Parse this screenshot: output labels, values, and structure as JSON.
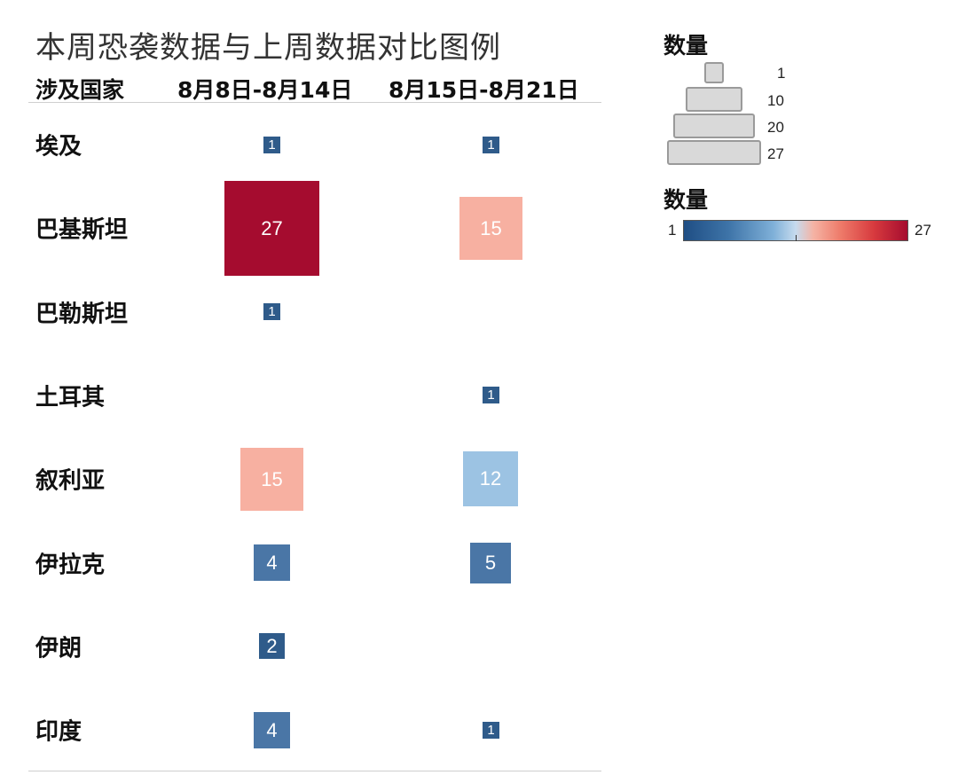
{
  "title": "本周恐袭数据与上周数据对比图例",
  "headers": {
    "country": "涉及国家",
    "week1": "8月8日-8月14日",
    "week2": "8月15日-8月21日"
  },
  "chart_data": {
    "type": "heatmap",
    "title": "本周恐袭数据与上周数据对比图例",
    "columns": [
      "8月8日-8月14日",
      "8月15日-8月21日"
    ],
    "rows": [
      {
        "country": "埃及",
        "values": [
          1,
          1
        ]
      },
      {
        "country": "巴基斯坦",
        "values": [
          27,
          15
        ]
      },
      {
        "country": "巴勒斯坦",
        "values": [
          1,
          null
        ]
      },
      {
        "country": "土耳其",
        "values": [
          null,
          1
        ]
      },
      {
        "country": "叙利亚",
        "values": [
          15,
          12
        ]
      },
      {
        "country": "伊拉克",
        "values": [
          4,
          5
        ]
      },
      {
        "country": "伊朗",
        "values": [
          2,
          null
        ]
      },
      {
        "country": "印度",
        "values": [
          4,
          1
        ]
      }
    ],
    "size_legend": {
      "title": "数量",
      "values": [
        1,
        10,
        20,
        27
      ]
    },
    "color_legend": {
      "title": "数量",
      "min": 1,
      "max": 27,
      "colors": [
        "#1f4e84",
        "#7fb0d8",
        "#c6dbee",
        "#f5b3a4",
        "#d73a3e",
        "#a50c2f"
      ]
    }
  }
}
